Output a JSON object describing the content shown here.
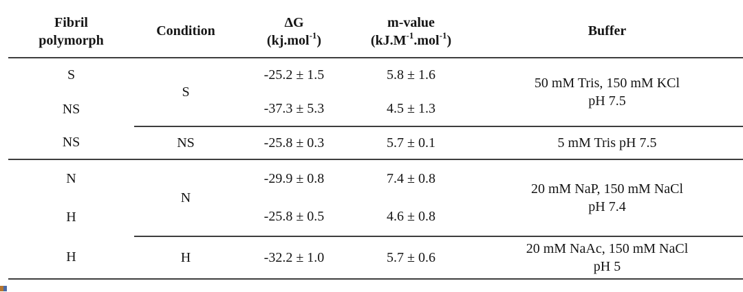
{
  "table": {
    "headers": {
      "polymorph_line1": "Fibril",
      "polymorph_line2": "polymorph",
      "condition": "Condition",
      "dg_name": "ΔG",
      "dg_unit_segments": [
        {
          "text": "(kj.mol"
        },
        {
          "sup": "-1"
        },
        {
          "text": ")"
        }
      ],
      "m_name": "m-value",
      "m_unit_segments": [
        {
          "text": "(kJ.M"
        },
        {
          "sup": "-1"
        },
        {
          "text": ".mol"
        },
        {
          "sup": "-1"
        },
        {
          "text": ")"
        }
      ],
      "buffer": "Buffer"
    },
    "rows": [
      {
        "polymorph": "S",
        "condition": "S",
        "dg": "-25.2 ± 1.5",
        "m": "5.8 ± 1.6",
        "buffer_line1": "50 mM Tris, 150 mM KCl",
        "buffer_line2": "pH 7.5"
      },
      {
        "polymorph": "NS",
        "dg": "-37.3 ± 5.3",
        "m": "4.5 ± 1.3"
      },
      {
        "polymorph": "NS",
        "condition": "NS",
        "dg": "-25.8 ± 0.3",
        "m": "5.7 ± 0.1",
        "buffer": "5 mM Tris pH 7.5"
      },
      {
        "polymorph": "N",
        "condition": "N",
        "dg": "-29.9 ± 0.8",
        "m": "7.4 ± 0.8",
        "buffer_line1": "20 mM NaP, 150 mM NaCl",
        "buffer_line2": "pH 7.4"
      },
      {
        "polymorph": "H",
        "dg": "-25.8 ± 0.5",
        "m": "4.6 ± 0.8"
      },
      {
        "polymorph": "H",
        "condition": "H",
        "dg": "-32.2 ± 1.0",
        "m": "5.7 ± 0.6",
        "buffer_line1": "20 mM NaAc, 150 mM NaCl",
        "buffer_line2": "pH 5"
      }
    ],
    "colors": {
      "rule": "#3d3d3d",
      "text": "#151515",
      "background": "#ffffff"
    }
  },
  "chart_data": {
    "type": "table",
    "title": "",
    "columns": [
      "Fibril polymorph",
      "Condition",
      "ΔG (kj.mol-1)",
      "m-value (kJ.M-1.mol-1)",
      "Buffer"
    ],
    "rows": [
      [
        "S",
        "S",
        "-25.2 ± 1.5",
        "5.8 ± 1.6",
        "50 mM Tris, 150 mM KCl pH 7.5"
      ],
      [
        "NS",
        "S",
        "-37.3 ± 5.3",
        "4.5 ± 1.3",
        "50 mM Tris, 150 mM KCl pH 7.5"
      ],
      [
        "NS",
        "NS",
        "-25.8 ± 0.3",
        "5.7 ± 0.1",
        "5 mM Tris pH 7.5"
      ],
      [
        "N",
        "N",
        "-29.9 ± 0.8",
        "7.4 ± 0.8",
        "20 mM NaP, 150 mM NaCl pH 7.4"
      ],
      [
        "H",
        "N",
        "-25.8 ± 0.5",
        "4.6 ± 0.8",
        "20 mM NaP, 150 mM NaCl pH 7.4"
      ],
      [
        "H",
        "H",
        "-32.2 ± 1.0",
        "5.7 ± 0.6",
        "20 mM NaAc, 150 mM NaCl pH 5"
      ]
    ]
  }
}
